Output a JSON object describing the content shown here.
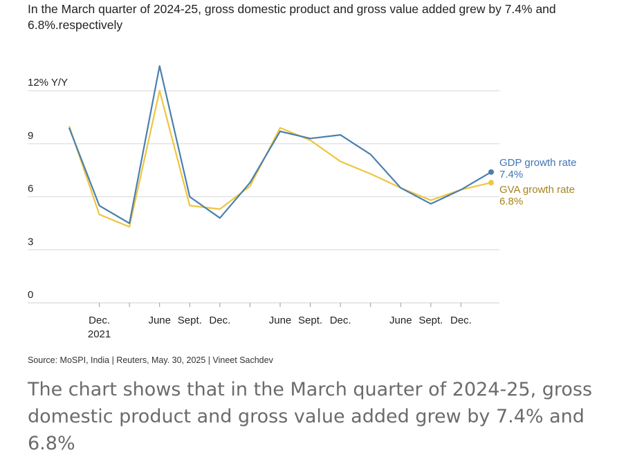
{
  "subtitle": "In the March quarter of 2024-25, gross domestic product and gross value added grew by 7.4% and 6.8%.respectively",
  "source": "Source: MoSPI, India | Reuters, May. 30, 2025 | Vineet Sachdev",
  "caption": "The chart shows that in the March quarter of 2024-25, gross domestic product and gross value added grew by 7.4% and 6.8%",
  "colors": {
    "gdp": "#4a7fae",
    "gva": "#efc53f",
    "gdp_label": "#3f76b3",
    "gva_label": "#a5841f",
    "grid": "#d7d7d7"
  },
  "chart_data": {
    "type": "line",
    "ylim": [
      0,
      13.3
    ],
    "y_ticks": [
      {
        "value": 0,
        "label": "0"
      },
      {
        "value": 3,
        "label": "3"
      },
      {
        "value": 6,
        "label": "6"
      },
      {
        "value": 9,
        "label": "9"
      },
      {
        "value": 12,
        "label": "12% Y/Y"
      }
    ],
    "x_count": 15,
    "x_ticks": [
      {
        "index": 1,
        "label": "Dec.",
        "sublabel": "2021"
      },
      {
        "index": 3,
        "label": "June",
        "sublabel": ""
      },
      {
        "index": 4,
        "label": "Sept.",
        "sublabel": ""
      },
      {
        "index": 5,
        "label": "Dec.",
        "sublabel": ""
      },
      {
        "index": 7,
        "label": "June",
        "sublabel": ""
      },
      {
        "index": 8,
        "label": "Sept.",
        "sublabel": ""
      },
      {
        "index": 9,
        "label": "Dec.",
        "sublabel": ""
      },
      {
        "index": 11,
        "label": "June",
        "sublabel": ""
      },
      {
        "index": 12,
        "label": "Sept.",
        "sublabel": ""
      },
      {
        "index": 13,
        "label": "Dec.",
        "sublabel": ""
      }
    ],
    "series": [
      {
        "key": "gva",
        "name": "GVA growth rate",
        "end_label": "6.8%",
        "values": [
          10.0,
          5.0,
          4.3,
          12.0,
          5.5,
          5.3,
          6.6,
          9.9,
          9.2,
          8.0,
          7.3,
          6.5,
          5.8,
          6.4,
          6.8
        ]
      },
      {
        "key": "gdp",
        "name": "GDP growth rate",
        "end_label": "7.4%",
        "values": [
          9.9,
          5.5,
          4.5,
          13.4,
          6.0,
          4.8,
          6.8,
          9.7,
          9.3,
          9.5,
          8.4,
          6.5,
          5.6,
          6.4,
          7.4
        ]
      }
    ]
  }
}
